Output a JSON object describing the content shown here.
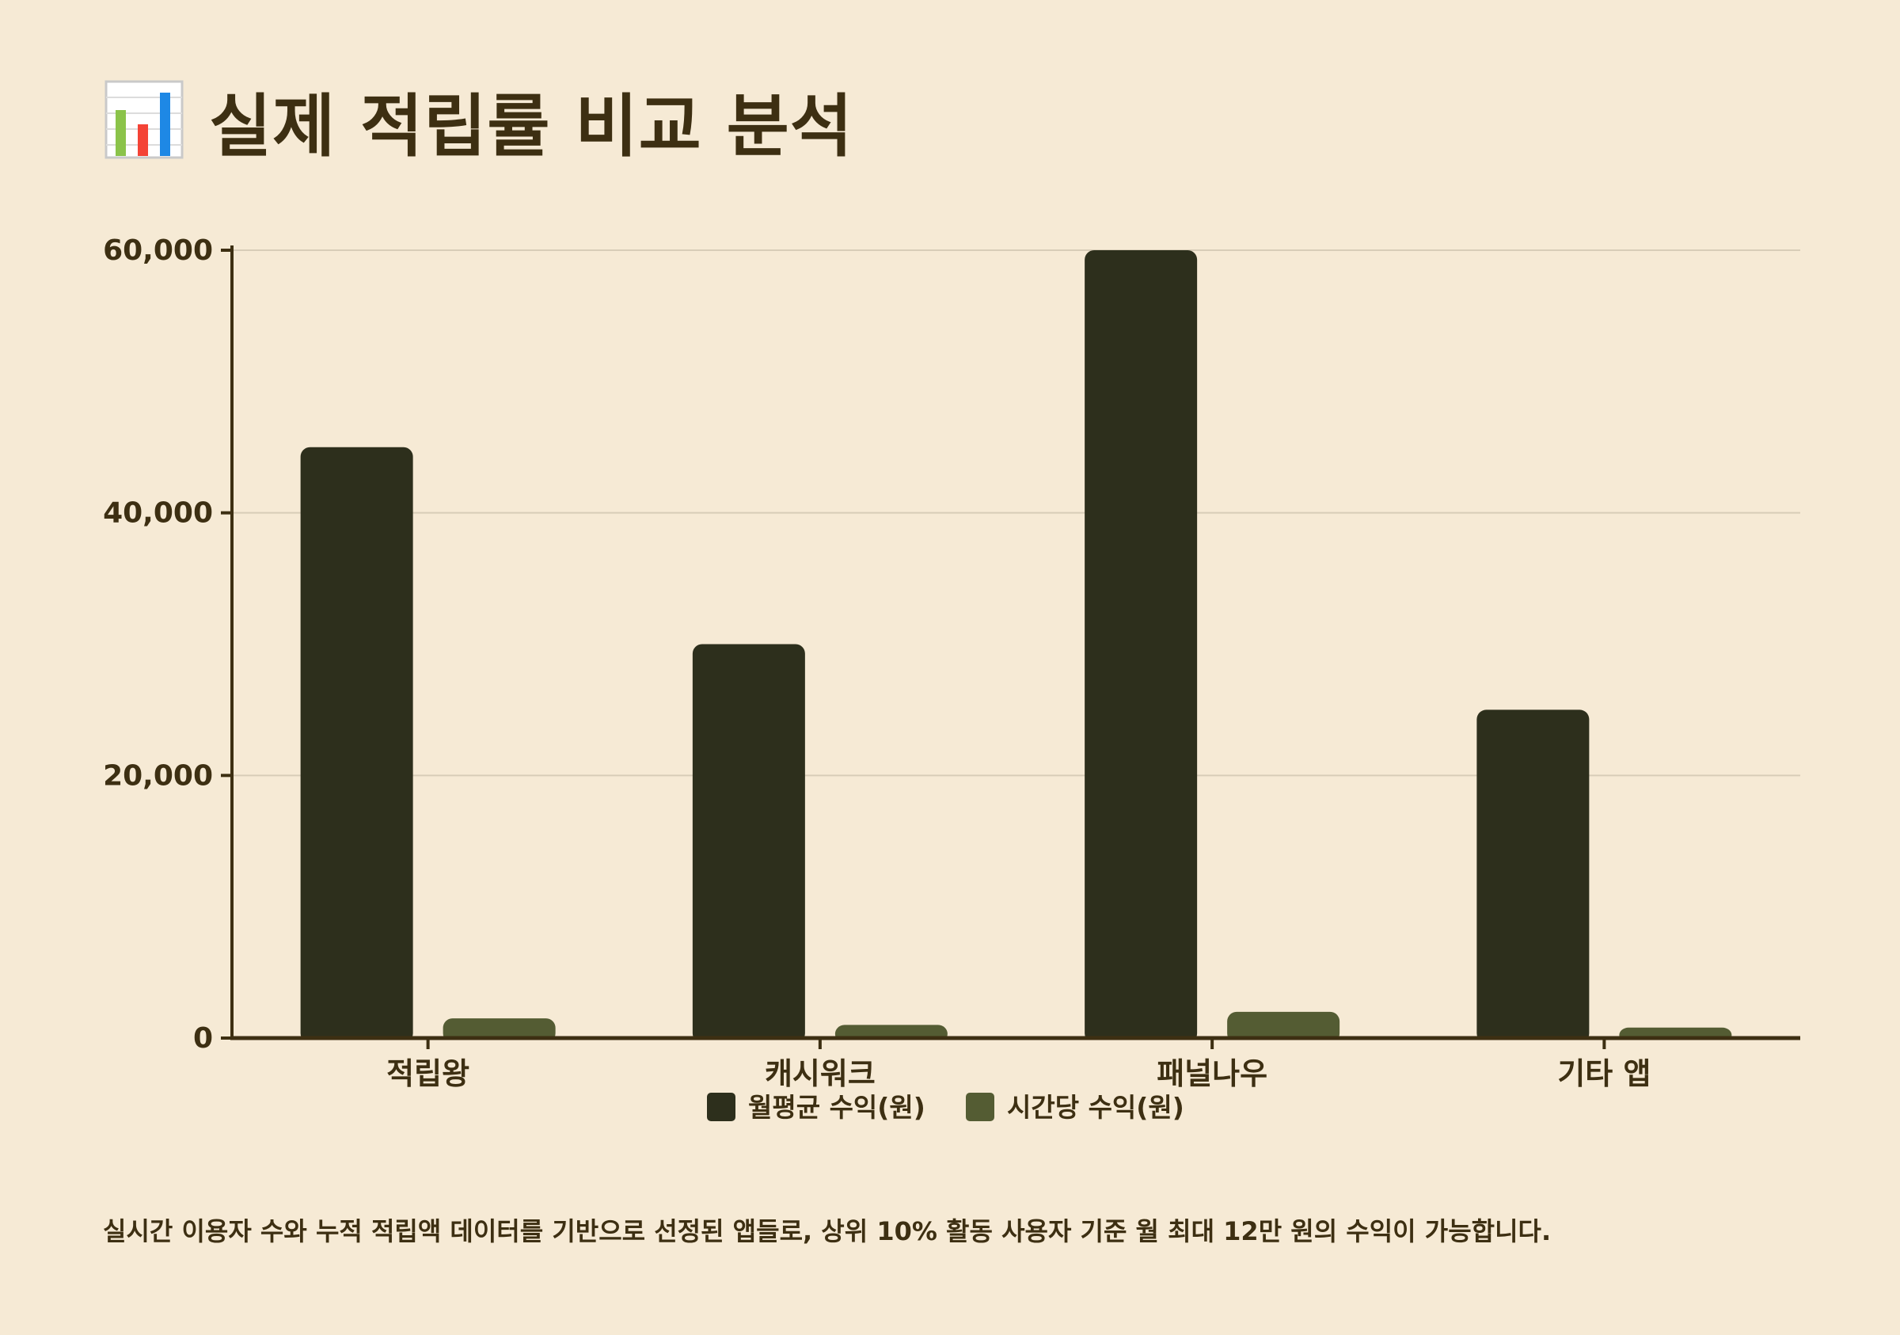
{
  "page": {
    "title": "실제 적립률 비교 분석",
    "title_icon": "bar-chart-icon",
    "footnote": "실시간 이용자 수와 누적 적립액 데이터를 기반으로 선정된 앱들로, 상위 10% 활동 사용자 기준 월 최대 12만 원의 수익이 가능합니다."
  },
  "colors": {
    "background": "#f6ead5",
    "text": "#3d2f12",
    "axis": "#3d2f12",
    "grid": "#d8cdb8",
    "series_1": "#2d2f1c",
    "series_2": "#545c33"
  },
  "chart_data": {
    "type": "bar",
    "categories": [
      "적립왕",
      "캐시워크",
      "패널나우",
      "기타 앱"
    ],
    "series": [
      {
        "name": "월평균 수익(원)",
        "values": [
          45000,
          30000,
          60000,
          25000
        ]
      },
      {
        "name": "시간당 수익(원)",
        "values": [
          1500,
          1000,
          2000,
          800
        ]
      }
    ],
    "y_ticks": [
      "0",
      "20,000",
      "40,000",
      "60,000"
    ],
    "y_tick_values": [
      0,
      20000,
      40000,
      60000
    ],
    "ylim": [
      0,
      60000
    ],
    "grid": true,
    "legend_position": "bottom-center"
  }
}
